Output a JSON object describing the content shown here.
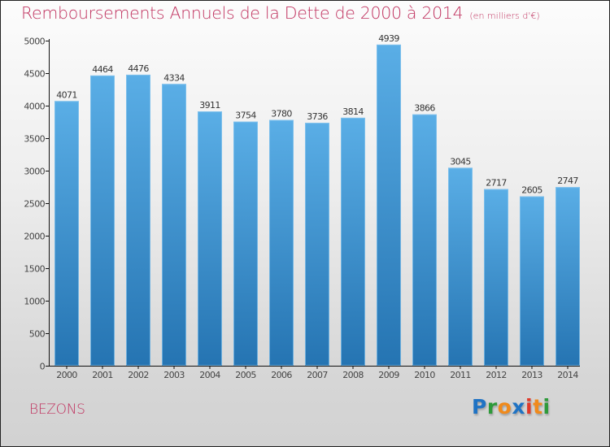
{
  "chart_data": {
    "type": "bar",
    "title": "Remboursements Annuels de la Dette de 2000 à 2014",
    "unit_note": "(en milliers d'€)",
    "xlabel": "",
    "ylabel": "",
    "categories": [
      "2000",
      "2001",
      "2002",
      "2003",
      "2004",
      "2005",
      "2006",
      "2007",
      "2008",
      "2009",
      "2010",
      "2011",
      "2012",
      "2013",
      "2014"
    ],
    "values": [
      4071,
      4464,
      4476,
      4334,
      3911,
      3754,
      3780,
      3736,
      3814,
      4939,
      3866,
      3045,
      2717,
      2605,
      2747
    ],
    "data_labels": [
      "4071",
      "4464",
      "4476",
      "4334",
      "3911",
      "3754",
      "3780",
      "3736",
      "3814",
      "4939",
      "3866",
      "3045",
      "2717",
      "2605",
      "2747"
    ],
    "ylim": [
      0,
      5000
    ],
    "yticks": [
      0,
      500,
      1000,
      1500,
      2000,
      2500,
      3000,
      3500,
      4000,
      4500,
      5000
    ],
    "ytick_labels": [
      "0",
      "500",
      "1000",
      "1500",
      "2000",
      "2500",
      "3000",
      "3500",
      "4000",
      "4500",
      "5000"
    ],
    "grid": false,
    "legend": "none",
    "colors": {
      "bar_top": "#5aaee6",
      "bar_bottom": "#2574b2",
      "title": "#c0325f"
    }
  },
  "footer": {
    "city": "BEZONS",
    "logo_letters": [
      {
        "ch": "P",
        "color": "#1f73c4"
      },
      {
        "ch": "r",
        "color": "#2e9a3a"
      },
      {
        "ch": "o",
        "color": "#f08a1c"
      },
      {
        "ch": "x",
        "color": "#1f73c4"
      },
      {
        "ch": "i",
        "color": "#e03a2a"
      },
      {
        "ch": "t",
        "color": "#f08a1c"
      },
      {
        "ch": "i",
        "color": "#2e9a3a"
      }
    ]
  }
}
